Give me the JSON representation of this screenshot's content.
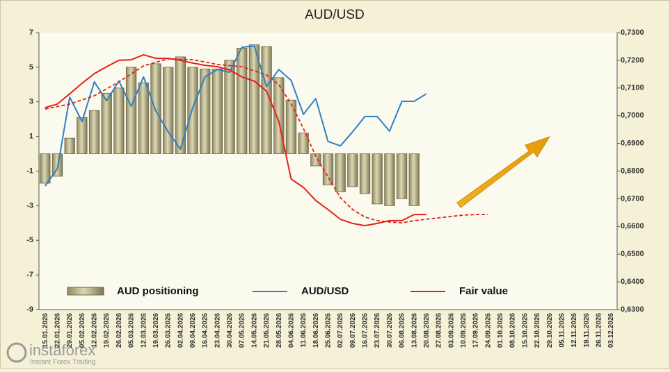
{
  "chart_data": {
    "type": "combo",
    "title": "AUD/USD",
    "categories": [
      "15.01.2026",
      "22.01.2026",
      "29.01.2026",
      "05.02.2026",
      "12.02.2026",
      "19.02.2026",
      "26.02.2026",
      "05.03.2026",
      "12.03.2026",
      "19.03.2026",
      "26.03.2026",
      "02.04.2026",
      "09.04.2026",
      "16.04.2026",
      "23.04.2026",
      "30.04.2026",
      "07.05.2026",
      "14.05.2026",
      "21.05.2026",
      "28.05.2026",
      "04.06.2026",
      "11.06.2026",
      "18.06.2026",
      "25.06.2026",
      "02.07.2026",
      "09.07.2026",
      "16.07.2026",
      "23.07.2026",
      "30.07.2026",
      "06.08.2026",
      "13.08.2026",
      "20.08.2026",
      "27.08.2026",
      "03.09.2026",
      "10.09.2026",
      "17.09.2026",
      "24.09.2026",
      "01.10.2026",
      "08.10.2026",
      "15.10.2026",
      "22.10.2026",
      "29.10.2026",
      "05.11.2026",
      "12.11.2026",
      "19.11.2026",
      "26.11.2026",
      "03.12.2026"
    ],
    "series": [
      {
        "name": "AUD positioning",
        "type": "bar",
        "axis": "y",
        "color": "#c9c39a",
        "values": [
          -1.7,
          -1.3,
          0.9,
          2.1,
          2.5,
          3.5,
          3.8,
          5.0,
          4.1,
          5.2,
          5.0,
          5.6,
          5.0,
          4.9,
          4.9,
          5.4,
          6.1,
          6.3,
          6.2,
          4.4,
          3.1,
          1.2,
          -0.7,
          -1.8,
          -2.2,
          -1.9,
          -2.3,
          -2.9,
          -3.0,
          -2.6,
          -3.0,
          null,
          null,
          null,
          null,
          null,
          null,
          null,
          null,
          null,
          null,
          null,
          null,
          null,
          null,
          null,
          null
        ]
      },
      {
        "name": "AUD/USD",
        "type": "line",
        "axis": "y2",
        "color": "#2f7fc4",
        "values": [
          0.6746,
          0.6809,
          0.7067,
          0.6979,
          0.7122,
          0.7054,
          0.7125,
          0.7034,
          0.714,
          0.7017,
          0.6942,
          0.6879,
          0.7029,
          0.714,
          0.7167,
          0.7157,
          0.7247,
          0.7252,
          0.7105,
          0.7167,
          0.7127,
          0.7005,
          0.7062,
          0.6907,
          0.6891,
          0.6942,
          0.6997,
          0.6997,
          0.6944,
          0.7052,
          0.7052,
          0.7079,
          null,
          null,
          null,
          null,
          null,
          null,
          null,
          null,
          null,
          null,
          null,
          null,
          null,
          null,
          null
        ]
      },
      {
        "name": "Fair value",
        "type": "line",
        "axis": "y2",
        "color": "#e3201b",
        "values": [
          0.7029,
          0.7042,
          0.7079,
          0.7117,
          0.7152,
          0.7177,
          0.72,
          0.7202,
          0.722,
          0.7207,
          0.7207,
          0.72,
          0.719,
          0.7182,
          0.7177,
          0.7165,
          0.714,
          0.7125,
          0.7089,
          0.6979,
          0.6771,
          0.6741,
          0.6694,
          0.6661,
          0.6626,
          0.6611,
          0.6603,
          0.6611,
          0.6621,
          0.6621,
          0.6643,
          0.6643,
          null,
          null,
          null,
          null,
          null,
          null,
          null,
          null,
          null,
          null,
          null,
          null,
          null,
          null,
          null
        ]
      },
      {
        "type": "line",
        "axis": "y2",
        "color": "#e3201b",
        "dashed": true,
        "values": [
          0.7024,
          0.7033,
          0.7042,
          0.7057,
          0.7072,
          0.7097,
          0.7122,
          0.7151,
          0.718,
          0.7193,
          0.7205,
          0.7204,
          0.7202,
          0.7194,
          0.7185,
          0.7181,
          0.7177,
          0.7162,
          0.7147,
          0.7112,
          0.7042,
          0.6954,
          0.6854,
          0.6779,
          0.6704,
          0.6661,
          0.6634,
          0.6621,
          0.6616,
          0.6613,
          0.6621,
          0.6626,
          0.6631,
          0.6636,
          0.6641,
          0.6643,
          0.6643,
          null,
          null,
          null,
          null,
          null,
          null,
          null,
          null,
          null,
          null
        ]
      }
    ],
    "ylim": [
      -9,
      7
    ],
    "yticks": [
      -9,
      -7,
      -5,
      -3,
      -1,
      1,
      3,
      5,
      7
    ],
    "y2lim": [
      0.63,
      0.73
    ],
    "y2ticks": [
      {
        "value": 0.63,
        "label": "0,6300"
      },
      {
        "value": 0.64,
        "label": "0,6400"
      },
      {
        "value": 0.65,
        "label": "0,6500"
      },
      {
        "value": 0.66,
        "label": "0,6600"
      },
      {
        "value": 0.67,
        "label": "0,6700"
      },
      {
        "value": 0.68,
        "label": "0,6800"
      },
      {
        "value": 0.69,
        "label": "0,6900"
      },
      {
        "value": 0.7,
        "label": "0,7000"
      },
      {
        "value": 0.71,
        "label": "0,7100"
      },
      {
        "value": 0.72,
        "label": "0,7200"
      },
      {
        "value": 0.73,
        "label": "0,7300"
      }
    ],
    "grid": false,
    "legend": "bottom"
  },
  "watermark": {
    "brand": "instaforex",
    "tagline": "Instant Forex Trading"
  }
}
